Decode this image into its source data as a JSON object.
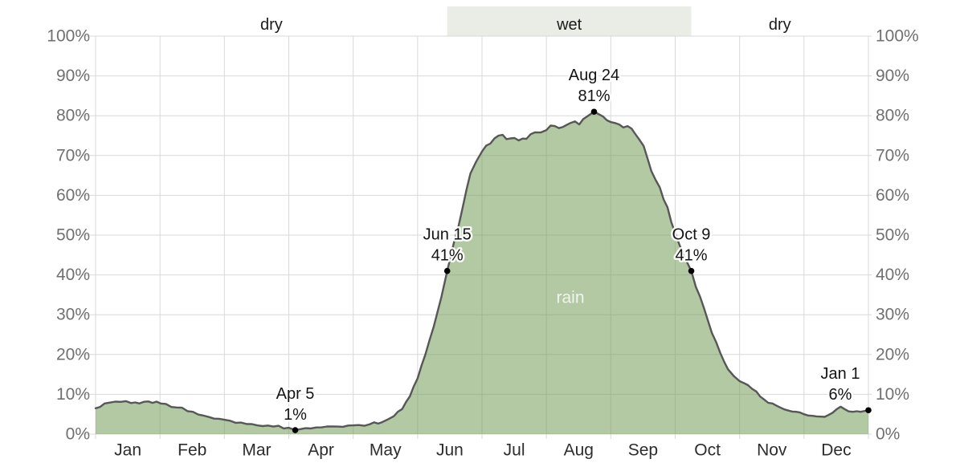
{
  "chart_data": {
    "type": "area",
    "title": "",
    "xlabel": "",
    "ylabel": "",
    "y_axis": {
      "min": 0,
      "max": 100,
      "step": 10,
      "suffix": "%",
      "shown_both_sides": true
    },
    "y_tick_labels": [
      "0%",
      "10%",
      "20%",
      "30%",
      "40%",
      "50%",
      "60%",
      "70%",
      "80%",
      "90%",
      "100%"
    ],
    "x_tick_labels": [
      "Jan",
      "Feb",
      "Mar",
      "Apr",
      "May",
      "Jun",
      "Jul",
      "Aug",
      "Sep",
      "Oct",
      "Nov",
      "Dec"
    ],
    "grid": true,
    "seasons": [
      {
        "label": "dry",
        "start_frac": 0,
        "end_frac": 5.46,
        "band": false
      },
      {
        "label": "wet",
        "start_frac": 5.46,
        "end_frac": 9.25,
        "band": true
      },
      {
        "label": "dry",
        "start_frac": 9.25,
        "end_frac": 12,
        "band": false
      }
    ],
    "series": [
      {
        "name": "chance-of-rain",
        "label": "rain",
        "points": [
          [
            0.0,
            6.5
          ],
          [
            0.14,
            7.7
          ],
          [
            0.39,
            8.1
          ],
          [
            0.55,
            7.8
          ],
          [
            0.68,
            7.7
          ],
          [
            0.82,
            8.2
          ],
          [
            1.01,
            7.7
          ],
          [
            1.26,
            6.7
          ],
          [
            1.51,
            5.6
          ],
          [
            1.76,
            4.3
          ],
          [
            2.0,
            3.6
          ],
          [
            2.26,
            2.9
          ],
          [
            2.51,
            2.2
          ],
          [
            2.76,
            1.9
          ],
          [
            3.0,
            1.6
          ],
          [
            3.1,
            1.0
          ],
          [
            3.26,
            1.5
          ],
          [
            3.51,
            1.7
          ],
          [
            3.76,
            1.9
          ],
          [
            4.0,
            2.2
          ],
          [
            4.26,
            2.5
          ],
          [
            4.45,
            3.0
          ],
          [
            4.63,
            4.5
          ],
          [
            4.76,
            6.3
          ],
          [
            4.88,
            9.5
          ],
          [
            5.0,
            14.0
          ],
          [
            5.12,
            20.0
          ],
          [
            5.25,
            27.0
          ],
          [
            5.37,
            34.5
          ],
          [
            5.46,
            41.0
          ],
          [
            5.57,
            48.5
          ],
          [
            5.7,
            57.0
          ],
          [
            5.82,
            65.5
          ],
          [
            6.0,
            71.0
          ],
          [
            6.13,
            73.0
          ],
          [
            6.32,
            75.2
          ],
          [
            6.44,
            74.3
          ],
          [
            6.57,
            73.8
          ],
          [
            6.69,
            74.2
          ],
          [
            6.82,
            75.8
          ],
          [
            7.0,
            76.4
          ],
          [
            7.13,
            77.4
          ],
          [
            7.26,
            77.2
          ],
          [
            7.38,
            78.2
          ],
          [
            7.51,
            77.8
          ],
          [
            7.63,
            79.8
          ],
          [
            7.74,
            81.0
          ],
          [
            7.88,
            79.8
          ],
          [
            8.0,
            78.4
          ],
          [
            8.13,
            77.8
          ],
          [
            8.26,
            77.4
          ],
          [
            8.32,
            76.8
          ],
          [
            8.38,
            75.4
          ],
          [
            8.51,
            72.4
          ],
          [
            8.63,
            66.1
          ],
          [
            8.76,
            62.0
          ],
          [
            8.88,
            57.0
          ],
          [
            9.0,
            50.5
          ],
          [
            9.13,
            45.0
          ],
          [
            9.25,
            41.0
          ],
          [
            9.32,
            37.0
          ],
          [
            9.45,
            31.5
          ],
          [
            9.57,
            25.4
          ],
          [
            9.7,
            20.4
          ],
          [
            9.82,
            16.3
          ],
          [
            10.0,
            13.3
          ],
          [
            10.13,
            12.3
          ],
          [
            10.26,
            10.7
          ],
          [
            10.38,
            8.7
          ],
          [
            10.51,
            7.7
          ],
          [
            10.63,
            6.7
          ],
          [
            10.76,
            5.9
          ],
          [
            10.88,
            5.6
          ],
          [
            11.0,
            5.0
          ],
          [
            11.13,
            4.6
          ],
          [
            11.26,
            4.4
          ],
          [
            11.38,
            4.8
          ],
          [
            11.51,
            6.3
          ],
          [
            11.57,
            6.9
          ],
          [
            11.63,
            6.3
          ],
          [
            11.76,
            5.6
          ],
          [
            11.88,
            5.6
          ],
          [
            12.0,
            6.0
          ]
        ]
      }
    ],
    "annotations": [
      {
        "id": "apr5",
        "date": "Apr 5",
        "value": "1%",
        "month_frac": 3.1,
        "pct": 1,
        "label_dx": 0
      },
      {
        "id": "jun15",
        "date": "Jun 15",
        "value": "41%",
        "month_frac": 5.46,
        "pct": 41,
        "label_dx": 0
      },
      {
        "id": "aug24",
        "date": "Aug 24",
        "value": "81%",
        "month_frac": 7.74,
        "pct": 81,
        "label_dx": 0
      },
      {
        "id": "oct9",
        "date": "Oct 9",
        "value": "41%",
        "month_frac": 9.25,
        "pct": 41,
        "label_dx": 0
      },
      {
        "id": "jan1",
        "date": "Jan 1",
        "value": "6%",
        "month_frac": 12.0,
        "pct": 6,
        "label_dx": -35
      }
    ],
    "colors": {
      "area_fill": "rgba(115,157,90,0.55)",
      "line": "#575757",
      "grid": "#d9d9d9",
      "band": "#e9ede5",
      "axis_text": "#707070",
      "month_text": "#2d2d2d",
      "annotation_text": "#141414",
      "season_text": "#1a1a1a",
      "rain_label": "rgba(255,255,255,0.8)",
      "dot": "#000000"
    }
  }
}
